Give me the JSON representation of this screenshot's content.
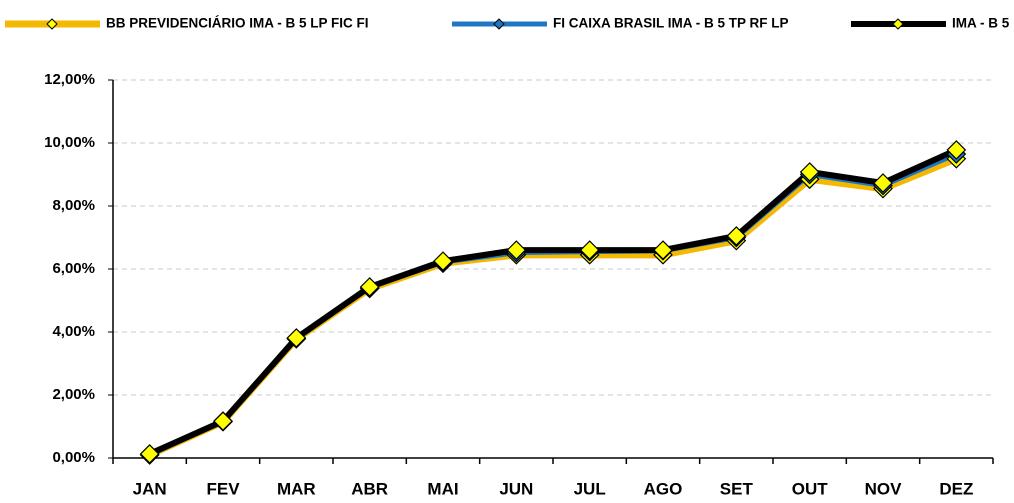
{
  "chart_data": {
    "type": "line",
    "categories": [
      "JAN",
      "FEV",
      "MAR",
      "ABR",
      "MAI",
      "JUN",
      "JUL",
      "AGO",
      "SET",
      "OUT",
      "NOV",
      "DEZ"
    ],
    "series": [
      {
        "name": "BB PREVIDENCIÁRIO IMA - B 5 LP FIC FI",
        "color": "#f5b800",
        "marker_color": "#ffff00",
        "values": [
          0.1,
          1.15,
          3.78,
          5.38,
          6.18,
          6.45,
          6.45,
          6.45,
          6.9,
          8.85,
          8.55,
          9.5
        ]
      },
      {
        "name": "FI CAIXA BRASIL IMA - B 5 TP RF LP",
        "color": "#1f77c4",
        "marker_color": "#1f77c4",
        "values": [
          0.1,
          1.17,
          3.8,
          5.42,
          6.22,
          6.52,
          6.55,
          6.58,
          7.0,
          9.0,
          8.65,
          9.65
        ]
      },
      {
        "name": "IMA - B 5",
        "color": "#000000",
        "marker_color": "#ffff00",
        "values": [
          0.13,
          1.17,
          3.81,
          5.43,
          6.25,
          6.6,
          6.6,
          6.6,
          7.05,
          9.08,
          8.73,
          9.78
        ]
      }
    ],
    "ylim": [
      0,
      12
    ],
    "yticks": [
      {
        "value": 0,
        "label": "0,00%"
      },
      {
        "value": 2,
        "label": "2,00%"
      },
      {
        "value": 4,
        "label": "4,00%"
      },
      {
        "value": 6,
        "label": "6,00%"
      },
      {
        "value": 8,
        "label": "8,00%"
      },
      {
        "value": 10,
        "label": "10,00%"
      },
      {
        "value": 12,
        "label": "12,00%"
      }
    ],
    "grid": true,
    "legend": "top"
  }
}
